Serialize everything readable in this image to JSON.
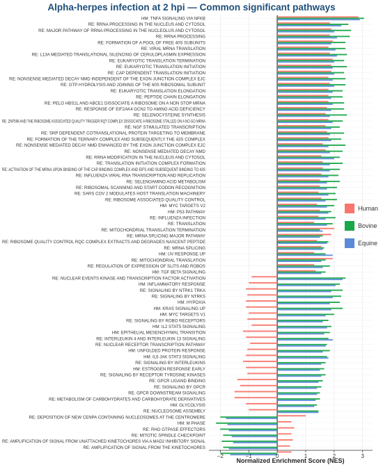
{
  "chart_data": {
    "type": "bar",
    "orientation": "horizontal",
    "title": "Alpha-herpes infection at 2 hpi — Common significant pathways",
    "xlabel": "Normalized Enrichment Score (NES)",
    "xlim": [
      -2.4,
      3.35
    ],
    "xticks": [
      -2,
      -1,
      0,
      1,
      2,
      3
    ],
    "legend_position": "right",
    "grid": true,
    "series": [
      {
        "name": "Human",
        "color": "#f8766d"
      },
      {
        "name": "Bovine",
        "color": "#1aa64a"
      },
      {
        "name": "Equine",
        "color": "#5b8bd8"
      }
    ],
    "categories": [
      "HM: TNFA SIGNALING VIA NFKB",
      "RE: RRNA PROCESSING IN THE NUCLEUS AND CYTOSOL",
      "RE: MAJOR PATHWAY OF RRNA PROCESSING IN THE NUCLEOLUS AND CYTOSOL",
      "RE: RRNA PROCESSING",
      "RE: FORMATION OF A POOL OF FREE 40S SUBUNITS",
      "RE: VIRAL MRNA TRANSLATION",
      "RE: L13A MEDIATED TRANSLATIONAL SILENCING OF CERULOPLASMIN EXPRESSION",
      "RE: EUKARYOTIC TRANSLATION TERMINATION",
      "RE: EUKARYOTIC TRANSLATION INITIATION",
      "RE: CAP DEPENDENT TRANSLATION INITIATION",
      "RE: NONSENSE MEDIATED DECAY NMD INDEPENDENT OF THE EXON JUNCTION COMPLEX EJC",
      "RE: GTP HYDROLYSIS AND JOINING OF THE 60S RIBOSOMAL SUBUNIT",
      "RE: EUKARYOTIC TRANSLATION ELONGATION",
      "RE: PEPTIDE CHAIN ELONGATION",
      "RE: PELO HBS1L AND ABCE1 DISSOCIATE A RIBOSOME ON A NON STOP MRNA",
      "RE: RESPONSE OF EIF2AK4 GCN2 TO AMINO ACID DEFICIENCY",
      "RE: SELENOCYSTEINE SYNTHESIS",
      "RE: ZNF598 AND THE RIBOSOME ASSOCIATED QUALITY TRIGGER RQT COMPLEX DISSOCIATE A RIBOSOME STALLED ON A NO GO MRNA",
      "RE: NGF STIMULATED TRANSCRIPTION",
      "RE: SRP DEPENDENT COTRANSLATIONAL PROTEIN TARGETING TO MEMBRANE",
      "RE: FORMATION OF THE TERNARY COMPLEX AND SUBSEQUENTLY THE 43S COMPLEX",
      "RE: NONSENSE MEDIATED DECAY NMD ENHANCED BY THE EXON JUNCTION COMPLEX EJC",
      "RE: NONSENSE MEDIATED DECAY NMD",
      "RE: RRNA MODIFICATION IN THE NUCLEUS AND CYTOSOL",
      "RE: TRANSLATION INITIATION COMPLEX FORMATION",
      "RE: ACTIVATION OF THE MRNA UPON BINDING OF THE CAP BINDING COMPLEX AND EIFS AND SUBSEQUENT BINDING TO 43S",
      "RE: INFLUENZA VIRAL RNA TRANSCRIPTION AND REPLICATION",
      "RE: SELENOAMINO ACID METABOLISM",
      "RE: RIBOSOMAL SCANNING AND START CODON RECOGNITION",
      "RE: SARS COV 2 MODULATES HOST TRANSLATION MACHINERY",
      "RE: RIBOSOME ASSOCIATED QUALITY CONTROL",
      "HM: MYC TARGETS V2",
      "HM: P53 PATHWAY",
      "RE: INFLUENZA INFECTION",
      "RE: TRANSLATION",
      "RE: MITOCHONDRIAL TRANSLATION TERMINATION",
      "RE: MRNA SPLICING MAJOR PATHWAY",
      "RE: RIBOSOME QUALITY CONTROL RQC COMPLEX EXTRACTS AND DEGRADES NASCENT PEPTIDE",
      "RE: MRNA SPLICING",
      "HM: UV RESPONSE UP",
      "RE: MITOCHONDRIAL TRANSLATION",
      "RE: REGULATION OF EXPRESSION OF SLITS AND ROBOS",
      "HM: TGF BETA SIGNALING",
      "RE: NUCLEAR EVENTS KINASE AND TRANSCRIPTION FACTOR ACTIVATION",
      "HM: INFLAMMATORY RESPONSE",
      "RE: SIGNALING BY NTRK1 TRKA",
      "RE: SIGNALING BY NTRKS",
      "HM: HYPOXIA",
      "HM: KRAS SIGNALING UP",
      "HM: MYC TARGETS V1",
      "RE: SIGNALING BY ROBO RECEPTORS",
      "HM: IL2 STAT5 SIGNALING",
      "HM: EPITHELIAL MESENCHYMAL TRANSITION",
      "RE: INTERLEUKIN 4 AND INTERLEUKIN 13 SIGNALING",
      "RE: NUCLEAR RECEPTOR TRANSCRIPTION PATHWAY",
      "HM: UNFOLDED PROTEIN RESPONSE",
      "HM: IL6 JAK STAT3 SIGNALING",
      "RE: SIGNALING BY INTERLEUKINS",
      "HM: ESTROGEN RESPONSE EARLY",
      "RE: SIGNALING BY RECEPTOR TYROSINE KINASES",
      "RE: GPCR LIGAND BINDING",
      "RE: SIGNALING BY GPCR",
      "RE: GPCR DOWNSTREAM SIGNALING",
      "RE: METABOLISM OF CARBOHYDRATES AND CARBOHYDRATE DERIVATIVES",
      "HM: GLYCOLYSIS",
      "RE: NUCLEOSOME ASSEMBLY",
      "RE: DEPOSITION OF NEW CENPA CONTAINING NUCLEOSOMES AT THE CENTROMERE",
      "HM: M PHASE",
      "RE: RHO GTPASE EFFECTORS",
      "RE: MITOTIC SPINDLE CHECKPOINT",
      "RE: AMPLIFICATION OF SIGNAL FROM UNATTACHED KINETOCHORES VIA A MAD2 INHIBITORY SIGNAL",
      "RE: AMPLIFICATION OF SIGNAL FROM THE KINETOCHORES"
    ],
    "values": {
      "Human": [
        2.85,
        1.85,
        1.9,
        1.85,
        1.95,
        1.8,
        1.85,
        1.95,
        1.9,
        1.9,
        1.8,
        1.85,
        1.8,
        1.8,
        1.8,
        1.75,
        1.7,
        1.8,
        1.7,
        1.75,
        1.8,
        1.6,
        1.7,
        1.55,
        1.6,
        1.6,
        1.55,
        1.5,
        1.5,
        1.45,
        1.55,
        1.4,
        1.5,
        1.45,
        1.3,
        2.0,
        1.9,
        1.4,
        1.55,
        1.3,
        1.95,
        1.3,
        1.35,
        -0.9,
        -1.0,
        -1.1,
        -1.05,
        -1.1,
        -1.1,
        -1.0,
        -1.05,
        -0.9,
        -1.2,
        -1.1,
        -0.95,
        -1.05,
        -1.1,
        -1.2,
        -1.1,
        -1.05,
        -1.4,
        -1.3,
        -1.5,
        -1.5,
        -1.1,
        -1.0,
        1.0,
        0.5,
        0.6,
        0.5,
        0.55,
        0.45,
        0.5
      ],
      "Bovine": [
        3.05,
        2.5,
        2.6,
        2.55,
        2.4,
        2.4,
        2.45,
        2.35,
        2.45,
        2.35,
        2.4,
        2.4,
        2.3,
        2.3,
        2.35,
        2.35,
        2.45,
        2.3,
        2.2,
        2.35,
        2.25,
        2.4,
        2.3,
        2.2,
        2.3,
        2.2,
        2.15,
        2.2,
        2.1,
        2.05,
        2.1,
        2.0,
        1.9,
        2.05,
        1.95,
        1.5,
        1.6,
        1.8,
        1.65,
        1.7,
        1.7,
        1.85,
        1.7,
        2.4,
        2.2,
        2.3,
        2.25,
        2.2,
        2.3,
        2.0,
        1.8,
        1.9,
        1.85,
        1.8,
        1.75,
        1.85,
        1.75,
        1.7,
        1.65,
        1.7,
        1.6,
        1.55,
        1.5,
        1.5,
        1.4,
        1.45,
        -2.0,
        -2.15,
        -2.0,
        -1.9,
        -1.95,
        -1.9,
        -2.0
      ],
      "Equine": [
        2.9,
        2.25,
        2.0,
        2.1,
        1.9,
        2.05,
        2.1,
        2.0,
        1.95,
        2.0,
        1.95,
        2.0,
        1.95,
        1.9,
        1.95,
        1.9,
        1.85,
        1.95,
        1.9,
        1.85,
        1.9,
        1.8,
        1.85,
        2.0,
        1.85,
        1.85,
        1.8,
        1.75,
        1.75,
        1.8,
        1.7,
        1.75,
        1.8,
        1.7,
        1.75,
        1.6,
        1.5,
        1.75,
        1.6,
        1.95,
        1.55,
        1.6,
        1.55,
        2.3,
        2.05,
        1.9,
        1.95,
        1.85,
        1.9,
        1.7,
        1.6,
        1.75,
        1.65,
        1.95,
        1.7,
        1.6,
        1.8,
        1.55,
        1.5,
        1.55,
        1.45,
        1.4,
        1.4,
        1.35,
        1.3,
        1.45,
        -1.8,
        -1.75,
        -1.7,
        -1.6,
        -1.55,
        -1.7,
        -1.65
      ]
    }
  }
}
